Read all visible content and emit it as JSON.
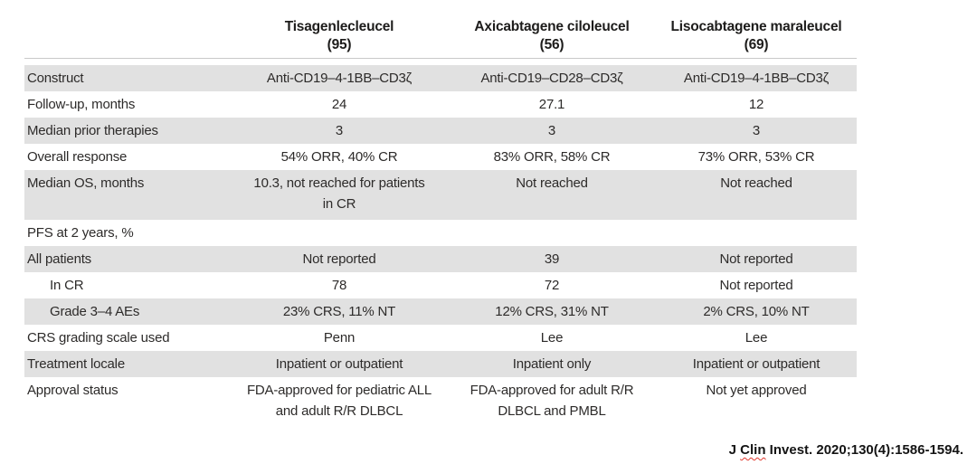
{
  "table": {
    "columns": [
      {
        "name": "Tisagenlecleucel",
        "n": "(95)"
      },
      {
        "name": "Axicabtagene ciloleucel",
        "n": "(56)"
      },
      {
        "name": "Lisocabtagene maraleucel",
        "n": "(69)"
      }
    ],
    "rows": [
      {
        "label": "Construct",
        "values": [
          "Anti-CD19–4-1BB–CD3ζ",
          "Anti-CD19–CD28–CD3ζ",
          "Anti-CD19–4-1BB–CD3ζ"
        ]
      },
      {
        "label": "Follow-up, months",
        "values": [
          "24",
          "27.1",
          "12"
        ]
      },
      {
        "label": "Median prior therapies",
        "values": [
          "3",
          "3",
          "3"
        ]
      },
      {
        "label": "Overall response",
        "values": [
          "54% ORR, 40% CR",
          "83% ORR, 58% CR",
          "73% ORR, 53% CR"
        ]
      },
      {
        "label": "Median OS, months",
        "values": [
          "10.3, not reached for patients\nin CR",
          "Not reached",
          "Not reached"
        ]
      },
      {
        "label": "PFS at 2 years, %",
        "values": [
          "",
          "",
          ""
        ]
      },
      {
        "label": "All patients",
        "values": [
          "Not reported",
          "39",
          "Not reported"
        ]
      },
      {
        "label": "In CR",
        "values": [
          "78",
          "72",
          "Not reported"
        ]
      },
      {
        "label": "Grade 3–4 AEs",
        "values": [
          "23% CRS, 11% NT",
          "12% CRS, 31% NT",
          "2% CRS, 10% NT"
        ]
      },
      {
        "label": "CRS grading scale used",
        "values": [
          "Penn",
          "Lee",
          "Lee"
        ]
      },
      {
        "label": "Treatment locale",
        "values": [
          "Inpatient or outpatient",
          "Inpatient only",
          "Inpatient or outpatient"
        ]
      },
      {
        "label": "Approval status",
        "values": [
          "FDA-approved for pediatric ALL\nand adult R/R DLBCL",
          "FDA-approved for adult R/R\nDLBCL and PMBL",
          "Not yet approved"
        ]
      }
    ]
  },
  "footer": {
    "prefix": "J ",
    "misspelled_word": "Clin",
    "suffix": " Invest. 2020;130(4):1586-1594."
  },
  "colors": {
    "row_shading": "#e1e1e1",
    "text": "#2d2b2a",
    "header_rule": "#c9c9c9",
    "spellcheck_squiggle": "#e0382e"
  },
  "chart_data": {
    "type": "table",
    "title": "",
    "column_headers": [
      "",
      "Tisagenlecleucel (95)",
      "Axicabtagene ciloleucel (56)",
      "Lisocabtagene maraleucel (69)"
    ],
    "rows": [
      [
        "Construct",
        "Anti-CD19–4-1BB–CD3ζ",
        "Anti-CD19–CD28–CD3ζ",
        "Anti-CD19–4-1BB–CD3ζ"
      ],
      [
        "Follow-up, months",
        "24",
        "27.1",
        "12"
      ],
      [
        "Median prior therapies",
        "3",
        "3",
        "3"
      ],
      [
        "Overall response",
        "54% ORR, 40% CR",
        "83% ORR, 58% CR",
        "73% ORR, 53% CR"
      ],
      [
        "Median OS, months",
        "10.3, not reached for patients in CR",
        "Not reached",
        "Not reached"
      ],
      [
        "PFS at 2 years, %",
        "",
        "",
        ""
      ],
      [
        "All patients",
        "Not reported",
        "39",
        "Not reported"
      ],
      [
        "In CR",
        "78",
        "72",
        "Not reported"
      ],
      [
        "Grade 3–4 AEs",
        "23% CRS, 11% NT",
        "12% CRS, 31% NT",
        "2% CRS, 10% NT"
      ],
      [
        "CRS grading scale used",
        "Penn",
        "Lee",
        "Lee"
      ],
      [
        "Treatment locale",
        "Inpatient or outpatient",
        "Inpatient only",
        "Inpatient or outpatient"
      ],
      [
        "Approval status",
        "FDA-approved for pediatric ALL and adult R/R DLBCL",
        "FDA-approved for adult R/R DLBCL and PMBL",
        "Not yet approved"
      ]
    ],
    "annotations": [
      "J Clin Invest. 2020;130(4):1586-1594."
    ]
  }
}
